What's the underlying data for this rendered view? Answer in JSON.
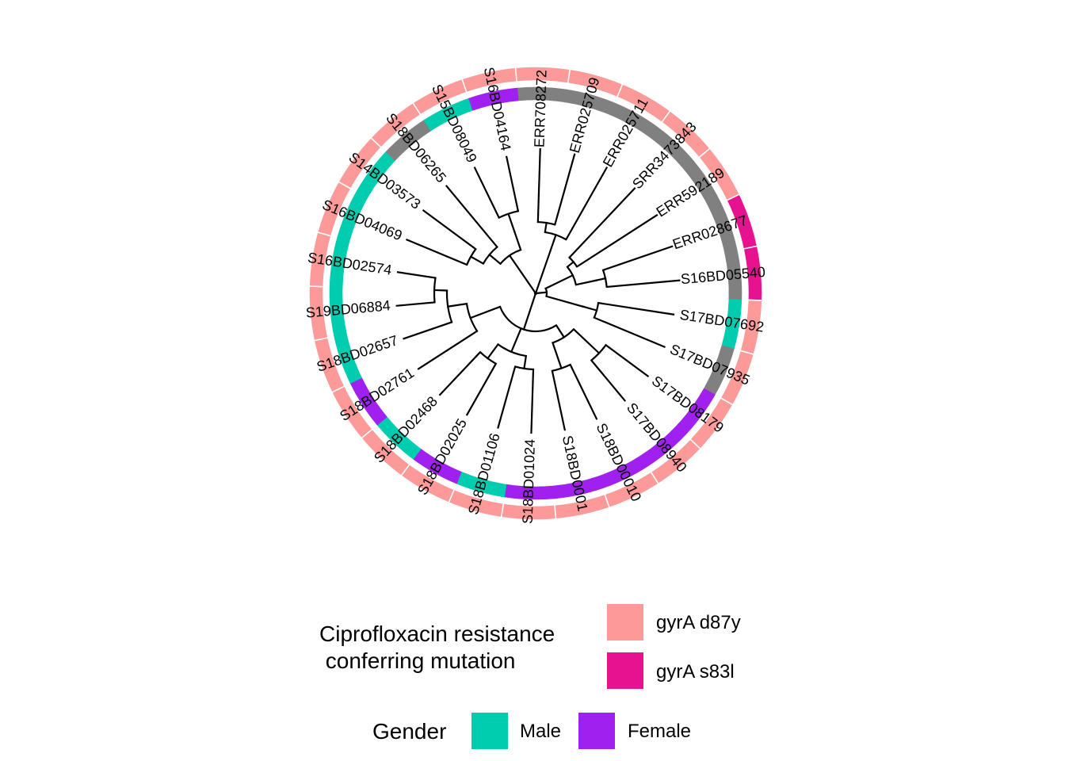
{
  "tree": {
    "tips": [
      {
        "label": "ERR708272",
        "mutation": "gyrA d87y",
        "gender": "unknown"
      },
      {
        "label": "ERR025709",
        "mutation": "gyrA d87y",
        "gender": "unknown"
      },
      {
        "label": "ERR025711",
        "mutation": "gyrA d87y",
        "gender": "unknown"
      },
      {
        "label": "SRR3473843",
        "mutation": "gyrA d87y",
        "gender": "unknown"
      },
      {
        "label": "ERR592189",
        "mutation": "gyrA d87y",
        "gender": "unknown"
      },
      {
        "label": "ERR028677",
        "mutation": "gyrA s83l",
        "gender": "unknown"
      },
      {
        "label": "S16BD05540",
        "mutation": "gyrA s83l",
        "gender": "unknown"
      },
      {
        "label": "S17BD07692",
        "mutation": "gyrA d87y",
        "gender": "Male"
      },
      {
        "label": "S17BD07935",
        "mutation": "gyrA d87y",
        "gender": "unknown"
      },
      {
        "label": "S17BD08179",
        "mutation": "gyrA d87y",
        "gender": "Female"
      },
      {
        "label": "S17BD08940",
        "mutation": "gyrA d87y",
        "gender": "Female"
      },
      {
        "label": "S18BD00010",
        "mutation": "gyrA d87y",
        "gender": "Female"
      },
      {
        "label": "S18BD0001",
        "mutation": "gyrA d87y",
        "gender": "Female"
      },
      {
        "label": "S18BD01024",
        "mutation": "gyrA d87y",
        "gender": "Female"
      },
      {
        "label": "S18BD01106",
        "mutation": "gyrA d87y",
        "gender": "Male"
      },
      {
        "label": "S18BD02025",
        "mutation": "gyrA d87y",
        "gender": "Female"
      },
      {
        "label": "S18BD02468",
        "mutation": "gyrA d87y",
        "gender": "Male"
      },
      {
        "label": "S18BD02761",
        "mutation": "gyrA d87y",
        "gender": "Female"
      },
      {
        "label": "S18BD02657",
        "mutation": "gyrA d87y",
        "gender": "Male"
      },
      {
        "label": "S19BD06884",
        "mutation": "gyrA d87y",
        "gender": "Male"
      },
      {
        "label": "S16BD02574",
        "mutation": "gyrA d87y",
        "gender": "Male"
      },
      {
        "label": "S16BD04069",
        "mutation": "gyrA d87y",
        "gender": "Male"
      },
      {
        "label": "S14BD03573",
        "mutation": "gyrA d87y",
        "gender": "Male"
      },
      {
        "label": "S18BD06265",
        "mutation": "gyrA d87y",
        "gender": "unknown"
      },
      {
        "label": "S15BD08049",
        "mutation": "gyrA d87y",
        "gender": "Male"
      },
      {
        "label": "S16BD04164",
        "mutation": "gyrA d87y",
        "gender": "Female"
      }
    ]
  },
  "legend": {
    "mutation": {
      "title": "Ciprofloxacin resistance\n conferring mutation",
      "items": [
        {
          "label": "gyrA d87y",
          "color": "#FB9A99"
        },
        {
          "label": "gyrA s83l",
          "color": "#E7128F"
        }
      ]
    },
    "gender": {
      "title": "Gender",
      "items": [
        {
          "label": "Male",
          "color": "#00CDB0"
        },
        {
          "label": "Female",
          "color": "#A020F0"
        }
      ]
    }
  },
  "colors": {
    "unknown_gender": "#808080",
    "ring_separator": "#ffffff",
    "branch": "#000000"
  }
}
